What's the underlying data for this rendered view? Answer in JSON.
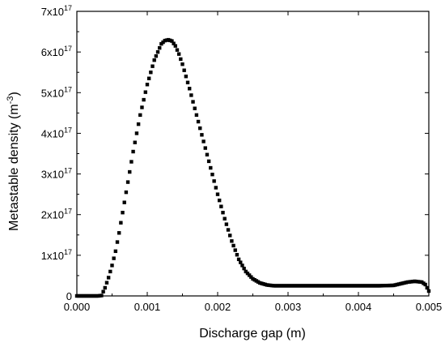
{
  "chart_data": {
    "type": "scatter",
    "xlabel": "Discharge gap (m)",
    "ylabel_main": "Metastable density (m",
    "ylabel_sup": "-3",
    "ylabel_close": ")",
    "xlim": [
      0,
      0.005
    ],
    "ylim": [
      0,
      7e+17
    ],
    "xticks": [
      {
        "value": 0,
        "label": "0.000"
      },
      {
        "value": 0.001,
        "label": "0.001"
      },
      {
        "value": 0.002,
        "label": "0.002"
      },
      {
        "value": 0.003,
        "label": "0.003"
      },
      {
        "value": 0.004,
        "label": "0.004"
      },
      {
        "value": 0.005,
        "label": "0.005"
      }
    ],
    "yticks": [
      {
        "value": 0,
        "mant": "0",
        "exp": ""
      },
      {
        "value": 1e+17,
        "mant": "1x10",
        "exp": "17"
      },
      {
        "value": 2e+17,
        "mant": "2x10",
        "exp": "17"
      },
      {
        "value": 3e+17,
        "mant": "3x10",
        "exp": "17"
      },
      {
        "value": 4e+17,
        "mant": "4x10",
        "exp": "17"
      },
      {
        "value": 5e+17,
        "mant": "5x10",
        "exp": "17"
      },
      {
        "value": 6e+17,
        "mant": "6x10",
        "exp": "17"
      },
      {
        "value": 7e+17,
        "mant": "7x10",
        "exp": "17"
      }
    ],
    "series_color": "#000000",
    "series": [
      {
        "x": [
          0,
          0.0003,
          0.00035,
          0.0004,
          0.00045,
          0.0005,
          0.00055,
          0.0006,
          0.00065,
          0.0007,
          0.00075,
          0.0008,
          0.0009,
          0.001,
          0.0011,
          0.0012,
          0.00125,
          0.0013,
          0.00135,
          0.0014,
          0.00145,
          0.0015,
          0.0016,
          0.0017,
          0.0018,
          0.0019,
          0.002,
          0.0021,
          0.0022,
          0.0023,
          0.0024,
          0.0025,
          0.0026,
          0.0027,
          0.0028,
          0.003,
          0.0035,
          0.004,
          0.0043,
          0.0045,
          0.0046,
          0.0047,
          0.0048,
          0.0049,
          0.00495,
          0.005
        ],
        "y": [
          0,
          0,
          1000000000000000.0,
          2e+16,
          4.5e+16,
          7.5e+16,
          1.1e+17,
          1.55e+17,
          2.05e+17,
          2.55e+17,
          3.05e+17,
          3.55e+17,
          4.45e+17,
          5.2e+17,
          5.8e+17,
          6.2e+17,
          6.28e+17,
          6.3e+17,
          6.27e+17,
          6.15e+17,
          5.95e+17,
          5.7e+17,
          5.1e+17,
          4.45e+17,
          3.8e+17,
          3.15e+17,
          2.5e+17,
          1.9e+17,
          1.35e+17,
          9e+16,
          6e+16,
          4.2e+16,
          3.2e+16,
          2.7e+16,
          2.5e+16,
          2.5e+16,
          2.5e+16,
          2.5e+16,
          2.5e+16,
          2.6e+16,
          3e+16,
          3.4e+16,
          3.6e+16,
          3.4e+16,
          2.8e+16,
          1.2e+16
        ]
      }
    ]
  }
}
